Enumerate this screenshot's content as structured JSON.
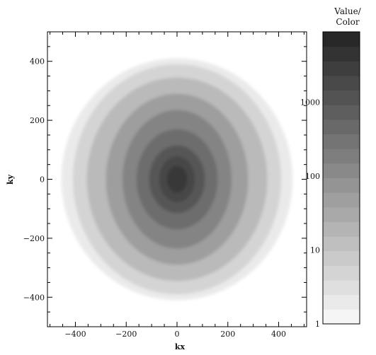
{
  "chart_data": {
    "type": "heatmap",
    "title": "",
    "xlabel": "kx",
    "ylabel": "ky",
    "xlim": [
      -510,
      510
    ],
    "ylim": [
      -500,
      500
    ],
    "x_ticks": [
      -400,
      -200,
      0,
      200,
      400
    ],
    "y_ticks": [
      -400,
      -200,
      0,
      200,
      400
    ],
    "x_tick_labels": [
      "−400",
      "−200",
      "0",
      "200",
      "400"
    ],
    "y_tick_labels": [
      "−400",
      "−200",
      "0",
      "200",
      "400"
    ],
    "grid": false,
    "colormap": "grayscale, light (low) to dark (high)",
    "colorbar": {
      "title_lines": [
        "Value/",
        "Color"
      ],
      "scale": "log",
      "range": [
        1,
        9000
      ],
      "ticks": [
        1,
        10,
        100,
        1000
      ],
      "tick_labels": [
        "1",
        "10",
        "100",
        "1000"
      ],
      "levels": 20
    },
    "center": [
      0,
      0
    ],
    "contour_levels": [
      {
        "value": 2,
        "semi_axis_kx": 455,
        "semi_axis_ky": 410
      },
      {
        "value": 5,
        "semi_axis_kx": 410,
        "semi_axis_ky": 390
      },
      {
        "value": 15,
        "semi_axis_kx": 355,
        "semi_axis_ky": 345
      },
      {
        "value": 50,
        "semi_axis_kx": 280,
        "semi_axis_ky": 290
      },
      {
        "value": 150,
        "semi_axis_kx": 215,
        "semi_axis_ky": 235
      },
      {
        "value": 400,
        "semi_axis_kx": 160,
        "semi_axis_ky": 170
      },
      {
        "value": 1000,
        "semi_axis_kx": 110,
        "semi_axis_ky": 115
      },
      {
        "value": 2000,
        "semi_axis_kx": 70,
        "semi_axis_ky": 78
      },
      {
        "value": 3500,
        "semi_axis_kx": 40,
        "semi_axis_ky": 45
      }
    ]
  }
}
